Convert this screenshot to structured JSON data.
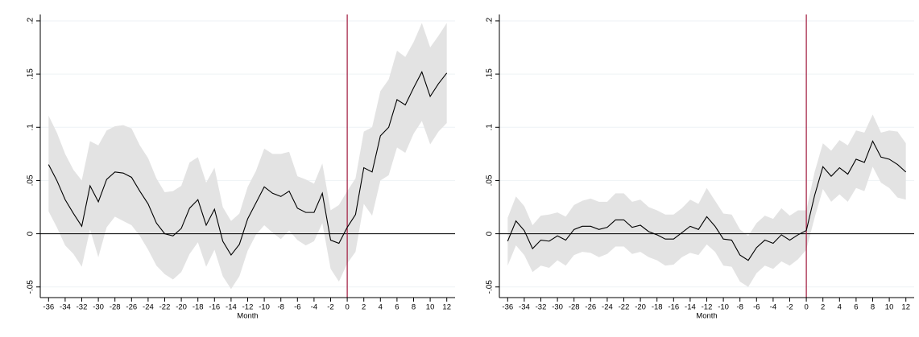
{
  "chart_data": [
    {
      "type": "line",
      "x_label": "Month",
      "x": [
        -36,
        -35,
        -34,
        -33,
        -32,
        -31,
        -30,
        -29,
        -28,
        -27,
        -26,
        -25,
        -24,
        -23,
        -22,
        -21,
        -20,
        -19,
        -18,
        -17,
        -16,
        -15,
        -14,
        -13,
        -12,
        -11,
        -10,
        -9,
        -8,
        -7,
        -6,
        -5,
        -4,
        -3,
        -2,
        -1,
        0,
        1,
        2,
        3,
        4,
        5,
        6,
        7,
        8,
        9,
        10,
        11,
        12
      ],
      "values": [
        0.065,
        0.05,
        0.032,
        0.019,
        0.007,
        0.045,
        0.03,
        0.051,
        0.058,
        0.057,
        0.053,
        0.04,
        0.028,
        0.01,
        0.0,
        -0.002,
        0.005,
        0.024,
        0.032,
        0.008,
        0.023,
        -0.007,
        -0.02,
        -0.01,
        0.014,
        0.029,
        0.044,
        0.038,
        0.035,
        0.04,
        0.024,
        0.02,
        0.02,
        0.038,
        -0.006,
        -0.009,
        0.006,
        0.018,
        0.062,
        0.058,
        0.092,
        0.1,
        0.126,
        0.121,
        0.137,
        0.152,
        0.129,
        0.141,
        0.151
      ],
      "band": {
        "upper": [
          0.111,
          0.095,
          0.075,
          0.06,
          0.05,
          0.087,
          0.083,
          0.097,
          0.101,
          0.102,
          0.099,
          0.083,
          0.071,
          0.052,
          0.039,
          0.04,
          0.045,
          0.067,
          0.072,
          0.048,
          0.062,
          0.025,
          0.012,
          0.019,
          0.044,
          0.059,
          0.08,
          0.075,
          0.075,
          0.077,
          0.054,
          0.051,
          0.047,
          0.066,
          0.022,
          0.027,
          0.04,
          0.052,
          0.096,
          0.1,
          0.134,
          0.145,
          0.172,
          0.166,
          0.18,
          0.198,
          0.175,
          0.186,
          0.198
        ],
        "lower": [
          0.021,
          0.006,
          -0.011,
          -0.019,
          -0.031,
          0.004,
          -0.022,
          0.006,
          0.016,
          0.012,
          0.008,
          -0.002,
          -0.015,
          -0.03,
          -0.038,
          -0.043,
          -0.036,
          -0.019,
          -0.008,
          -0.031,
          -0.015,
          -0.04,
          -0.052,
          -0.04,
          -0.016,
          -0.001,
          0.008,
          0.001,
          -0.005,
          0.003,
          -0.006,
          -0.011,
          -0.007,
          0.01,
          -0.033,
          -0.045,
          -0.028,
          -0.017,
          0.028,
          0.017,
          0.05,
          0.055,
          0.081,
          0.076,
          0.094,
          0.106,
          0.084,
          0.096,
          0.104
        ]
      },
      "color": "#000000",
      "band_color": "#e3e3e3",
      "vline": 0,
      "vline_color": "#a0183c",
      "hline": 0,
      "xlim": [
        -37,
        13
      ],
      "xticks": [
        -36,
        -34,
        -32,
        -30,
        -28,
        -26,
        -24,
        -22,
        -20,
        -18,
        -16,
        -14,
        -12,
        -10,
        -8,
        -6,
        -4,
        -2,
        0,
        2,
        4,
        6,
        8,
        10,
        12
      ],
      "ylim": [
        -0.06,
        0.206
      ],
      "yticks": [
        {
          "value": -0.05,
          "label": "-.05"
        },
        0,
        {
          "value": 0.05,
          "label": ".05"
        },
        {
          "value": 0.1,
          "label": ".1"
        },
        {
          "value": 0.15,
          "label": ".15"
        },
        {
          "value": 0.2,
          "label": ".2"
        }
      ],
      "grid": true
    },
    {
      "type": "line",
      "x_label": "Month",
      "x": [
        -36,
        -35,
        -34,
        -33,
        -32,
        -31,
        -30,
        -29,
        -28,
        -27,
        -26,
        -25,
        -24,
        -23,
        -22,
        -21,
        -20,
        -19,
        -18,
        -17,
        -16,
        -15,
        -14,
        -13,
        -12,
        -11,
        -10,
        -9,
        -8,
        -7,
        -6,
        -5,
        -4,
        -3,
        -2,
        -1,
        0,
        1,
        2,
        3,
        4,
        5,
        6,
        7,
        8,
        9,
        10,
        11,
        12
      ],
      "values": [
        -0.007,
        0.012,
        0.003,
        -0.014,
        -0.006,
        -0.007,
        -0.002,
        -0.006,
        0.004,
        0.007,
        0.007,
        0.004,
        0.006,
        0.013,
        0.013,
        0.006,
        0.008,
        0.002,
        -0.001,
        -0.005,
        -0.005,
        0.001,
        0.007,
        0.004,
        0.016,
        0.007,
        -0.005,
        -0.006,
        -0.02,
        -0.025,
        -0.013,
        -0.006,
        -0.009,
        -0.001,
        -0.006,
        -0.001,
        0.003,
        0.036,
        0.063,
        0.054,
        0.062,
        0.056,
        0.07,
        0.067,
        0.087,
        0.072,
        0.07,
        0.065,
        0.058
      ],
      "band": {
        "upper": [
          0.015,
          0.035,
          0.026,
          0.008,
          0.017,
          0.018,
          0.02,
          0.016,
          0.027,
          0.031,
          0.033,
          0.03,
          0.03,
          0.038,
          0.038,
          0.03,
          0.032,
          0.025,
          0.022,
          0.018,
          0.018,
          0.024,
          0.032,
          0.028,
          0.043,
          0.031,
          0.019,
          0.018,
          0.004,
          -0.002,
          0.01,
          0.017,
          0.014,
          0.024,
          0.017,
          0.022,
          0.022,
          0.058,
          0.085,
          0.078,
          0.088,
          0.083,
          0.097,
          0.095,
          0.112,
          0.095,
          0.097,
          0.096,
          0.085
        ],
        "lower": [
          -0.03,
          -0.011,
          -0.02,
          -0.036,
          -0.03,
          -0.032,
          -0.025,
          -0.03,
          -0.02,
          -0.017,
          -0.018,
          -0.022,
          -0.019,
          -0.012,
          -0.012,
          -0.019,
          -0.017,
          -0.022,
          -0.025,
          -0.03,
          -0.029,
          -0.022,
          -0.018,
          -0.02,
          -0.01,
          -0.017,
          -0.03,
          -0.031,
          -0.045,
          -0.05,
          -0.037,
          -0.03,
          -0.033,
          -0.026,
          -0.03,
          -0.024,
          -0.015,
          0.015,
          0.042,
          0.03,
          0.037,
          0.03,
          0.043,
          0.04,
          0.063,
          0.048,
          0.043,
          0.034,
          0.032
        ]
      },
      "color": "#000000",
      "band_color": "#e3e3e3",
      "vline": 0,
      "vline_color": "#a0183c",
      "hline": 0,
      "xlim": [
        -37,
        13
      ],
      "xticks": [
        -36,
        -34,
        -32,
        -30,
        -28,
        -26,
        -24,
        -22,
        -20,
        -18,
        -16,
        -14,
        -12,
        -10,
        -8,
        -6,
        -4,
        -2,
        0,
        2,
        4,
        6,
        8,
        10,
        12
      ],
      "ylim": [
        -0.06,
        0.206
      ],
      "yticks": [
        {
          "value": -0.05,
          "label": "-.05"
        },
        0,
        {
          "value": 0.05,
          "label": ".05"
        },
        {
          "value": 0.1,
          "label": ".1"
        },
        {
          "value": 0.15,
          "label": ".15"
        },
        {
          "value": 0.2,
          "label": ".2"
        }
      ],
      "grid": true
    }
  ]
}
